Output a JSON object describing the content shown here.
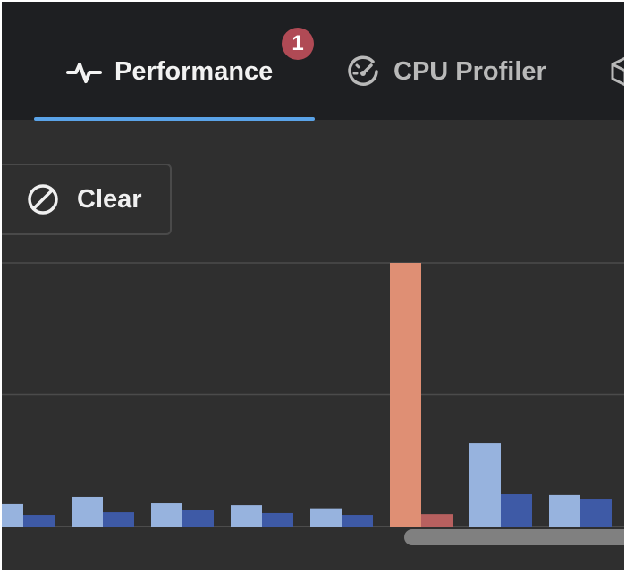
{
  "tabs": [
    {
      "label": "Performance",
      "icon": "activity-icon",
      "active": true
    },
    {
      "label": "CPU Profiler",
      "icon": "gauge-icon",
      "active": false
    },
    {
      "label": "",
      "icon": "cube-icon",
      "active": false
    }
  ],
  "badge": {
    "count": "1",
    "color": "#b04a55"
  },
  "toolbar": {
    "clear_label": "Clear",
    "clear_icon": "ban-icon"
  },
  "colors": {
    "accent": "#5aa3e8",
    "bar_light": "#97b3de",
    "bar_dark": "#3e5aa6",
    "bar_highlight_light": "#df8f74",
    "bar_highlight_dark": "#b7605f"
  },
  "chart_data": {
    "type": "bar",
    "grid": true,
    "ylim": [
      0,
      100
    ],
    "gridlines": [
      50,
      100
    ],
    "series": [
      {
        "values": [
          8.5,
          11.2,
          8.8,
          8.1,
          6.9,
          100,
          31.5,
          11.9
        ]
      },
      {
        "values": [
          4.4,
          5.4,
          6.1,
          5.1,
          4.4,
          4.7,
          12.2,
          10.5
        ]
      }
    ],
    "highlight_index": 5
  }
}
